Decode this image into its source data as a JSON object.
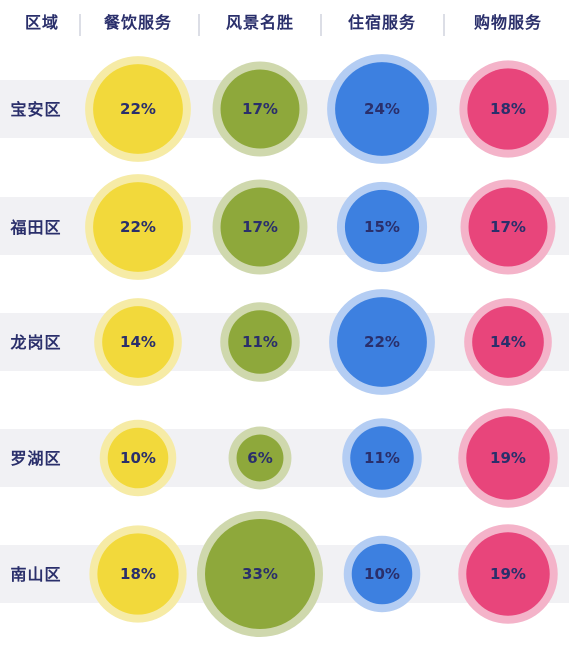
{
  "chart_data": {
    "type": "bubble",
    "columns": [
      "餐饮服务",
      "风景名胜",
      "住宿服务",
      "购物服务"
    ],
    "row_header": "区域",
    "rows": [
      {
        "region": "宝安区",
        "values": [
          22,
          17,
          24,
          18
        ],
        "labels": [
          "22%",
          "17%",
          "24%",
          "18%"
        ]
      },
      {
        "region": "福田区",
        "values": [
          22,
          17,
          15,
          17
        ],
        "labels": [
          "22%",
          "17%",
          "15%",
          "17%"
        ]
      },
      {
        "region": "龙岗区",
        "values": [
          14,
          11,
          22,
          14
        ],
        "labels": [
          "14%",
          "11%",
          "22%",
          "14%"
        ]
      },
      {
        "region": "罗湖区",
        "values": [
          10,
          6,
          11,
          19
        ],
        "labels": [
          "10%",
          "6%",
          "11%",
          "19%"
        ]
      },
      {
        "region": "南山区",
        "values": [
          18,
          33,
          10,
          19
        ],
        "labels": [
          "18%",
          "33%",
          "10%",
          "19%"
        ]
      }
    ],
    "unit": "%",
    "colors": {
      "fill": [
        "#f2d93b",
        "#8ea83b",
        "#3d80e0",
        "#e8457b"
      ],
      "ring": [
        "#f6eba6",
        "#cfd8ad",
        "#b4cdf3",
        "#f4b3c9"
      ],
      "row_band": "#f1f1f4",
      "text": "#2a2f6b",
      "divider": "#b9bccc"
    }
  }
}
